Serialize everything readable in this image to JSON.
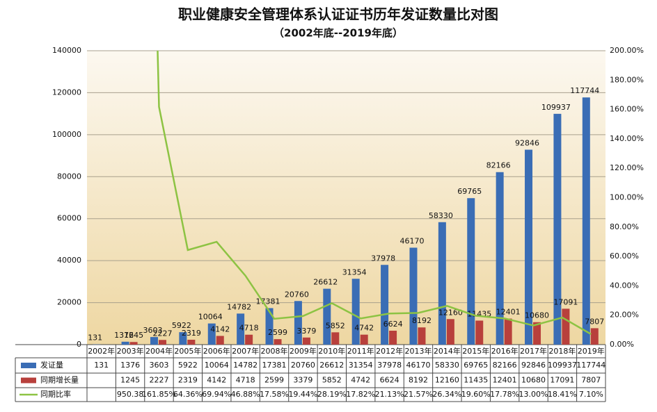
{
  "chart_data": {
    "type": "bar",
    "title": "职业健康安全管理体系认证证书历年发证数量比对图",
    "subtitle": "（2002年底--2019年底）",
    "categories": [
      "2002年",
      "2003年",
      "2004年",
      "2005年",
      "2006年",
      "2007年",
      "2008年",
      "2009年",
      "2010年",
      "2011年",
      "2012年",
      "2013年",
      "2014年",
      "2015年",
      "2016年",
      "2017年",
      "2018年",
      "2019年"
    ],
    "series": [
      {
        "name": "发证量",
        "color": "#3a6db5",
        "values": [
          131,
          1376,
          3603,
          5922,
          10064,
          14782,
          17381,
          20760,
          26612,
          31354,
          37978,
          46170,
          58330,
          69765,
          82166,
          92846,
          109937,
          117744
        ]
      },
      {
        "name": "同期增长量",
        "color": "#b8403c",
        "values": [
          null,
          1245,
          2227,
          2319,
          4142,
          4718,
          2599,
          3379,
          5852,
          4742,
          6624,
          8192,
          12160,
          11435,
          12401,
          10680,
          17091,
          7807
        ]
      },
      {
        "name": "同期比率",
        "color": "#8dc343",
        "type": "line",
        "axis": "y2",
        "values": [
          null,
          950.38,
          161.85,
          64.36,
          69.94,
          46.88,
          17.58,
          19.44,
          28.19,
          17.82,
          21.13,
          21.57,
          26.34,
          19.6,
          17.78,
          13,
          18.41,
          7.1
        ],
        "value_labels": [
          null,
          "950.38",
          "161.85%",
          "64.36%",
          "69.94%",
          "46.88%",
          "17.58%",
          "19.44%",
          "28.19%",
          "17.82%",
          "21.13%",
          "21.57%",
          "26.34%",
          "19.60%",
          "17.78%",
          "13.00%",
          "18.41%",
          "7.10%"
        ]
      }
    ],
    "ylim": [
      0,
      140000
    ],
    "yticks": [
      0,
      20000,
      40000,
      60000,
      80000,
      100000,
      120000,
      140000
    ],
    "y2lim": [
      0,
      200
    ],
    "y2ticks": [
      {
        "value": 0,
        "label": "0.00%"
      },
      {
        "value": 20,
        "label": "20.00%"
      },
      {
        "value": 40,
        "label": "40.00%"
      },
      {
        "value": 60,
        "label": "60.00%"
      },
      {
        "value": 80,
        "label": "80.00%"
      },
      {
        "value": 100,
        "label": "100.00%"
      },
      {
        "value": 120,
        "label": "120.00%"
      },
      {
        "value": 140,
        "label": "140.00%"
      },
      {
        "value": 160,
        "label": "160.00%"
      },
      {
        "value": 180,
        "label": "180.00%"
      },
      {
        "value": 200,
        "label": "200.00%"
      }
    ],
    "grid": true
  }
}
